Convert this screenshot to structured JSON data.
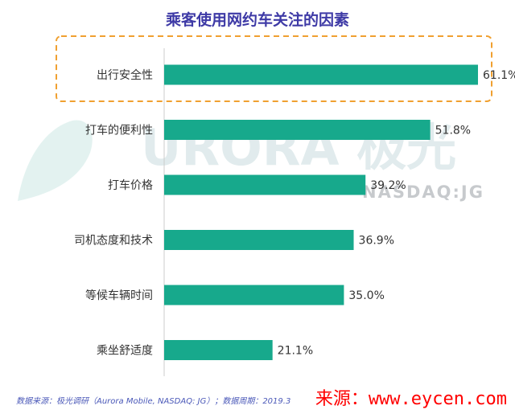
{
  "chart_data": {
    "type": "bar",
    "orientation": "horizontal",
    "title": "乘客使用网约车关注的因素",
    "categories": [
      "出行安全性",
      "打车的便利性",
      "打车价格",
      "司机态度和技术",
      "等候车辆时间",
      "乘坐舒适度"
    ],
    "values": [
      61.1,
      51.8,
      39.2,
      36.9,
      35.0,
      21.1
    ],
    "value_labels": [
      "61.1%",
      "51.8%",
      "39.2%",
      "36.9%",
      "35.0%",
      "21.1%"
    ],
    "xlim": [
      0,
      70
    ],
    "highlighted_category": "出行安全性",
    "grid": false,
    "legend": "none",
    "bar_color": "#17a98c"
  },
  "watermark": {
    "text": "URORA 极光",
    "subtext": "NASDAQ:JG"
  },
  "footer": {
    "note": "数据来源：极光调研（Aurora Mobile, NASDAQ: JG）；数据周期：2019.3"
  },
  "source_mark": "来源：www.eycen.com"
}
